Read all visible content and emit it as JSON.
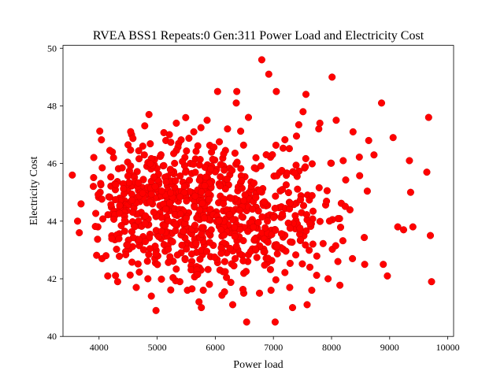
{
  "chart_data": {
    "type": "scatter",
    "title": "RVEA BSS1 Repeats:0 Gen:311 Power Load and Electricity Cost",
    "xlabel": "Power load",
    "ylabel": "Electricity Cost",
    "xlim": [
      3380,
      10100
    ],
    "ylim": [
      40,
      50.1
    ],
    "xticks": [
      4000,
      5000,
      6000,
      7000,
      8000,
      9000,
      10000
    ],
    "yticks": [
      40,
      42,
      44,
      46,
      48,
      50
    ],
    "grid": false,
    "marker_color": "#ff0000",
    "marker_edge_color": "#d40000",
    "sampled_points": [
      [
        3540,
        45.6
      ],
      [
        3630,
        44.0
      ],
      [
        3660,
        43.6
      ],
      [
        3690,
        44.6
      ],
      [
        3980,
        43.8
      ],
      [
        4020,
        45.0
      ],
      [
        4050,
        42.7
      ],
      [
        4120,
        42.8
      ],
      [
        4150,
        42.1
      ],
      [
        4230,
        46.4
      ],
      [
        4250,
        46.2
      ],
      [
        4320,
        41.9
      ],
      [
        4420,
        44.5
      ],
      [
        4560,
        47.0
      ],
      [
        4640,
        41.7
      ],
      [
        4700,
        45.2
      ],
      [
        4780,
        46.3
      ],
      [
        4860,
        47.7
      ],
      [
        4840,
        42.0
      ],
      [
        4900,
        41.4
      ],
      [
        4980,
        40.9
      ],
      [
        5070,
        43.4
      ],
      [
        5150,
        46.8
      ],
      [
        5210,
        47.0
      ],
      [
        5330,
        47.4
      ],
      [
        5390,
        41.9
      ],
      [
        5480,
        42.7
      ],
      [
        5520,
        41.6
      ],
      [
        5630,
        47.1
      ],
      [
        5720,
        41.2
      ],
      [
        5760,
        41.0
      ],
      [
        5860,
        47.5
      ],
      [
        6040,
        48.5
      ],
      [
        6080,
        42.3
      ],
      [
        6210,
        47.2
      ],
      [
        6300,
        41.1
      ],
      [
        6370,
        48.5
      ],
      [
        6360,
        48.1
      ],
      [
        6490,
        41.5
      ],
      [
        6540,
        40.5
      ],
      [
        6570,
        47.6
      ],
      [
        6700,
        46.2
      ],
      [
        6760,
        41.5
      ],
      [
        6800,
        49.6
      ],
      [
        6920,
        49.1
      ],
      [
        6960,
        41.6
      ],
      [
        7050,
        48.5
      ],
      [
        7030,
        40.5
      ],
      [
        7280,
        41.7
      ],
      [
        7330,
        41.0
      ],
      [
        7510,
        47.8
      ],
      [
        7560,
        48.4
      ],
      [
        7580,
        41.1
      ],
      [
        7660,
        41.6
      ],
      [
        7780,
        47.2
      ],
      [
        7800,
        47.4
      ],
      [
        7940,
        42.0
      ],
      [
        8010,
        49.0
      ],
      [
        8080,
        47.5
      ],
      [
        8110,
        42.6
      ],
      [
        8200,
        46.1
      ],
      [
        8360,
        42.7
      ],
      [
        8370,
        47.1
      ],
      [
        8570,
        42.5
      ],
      [
        8640,
        46.8
      ],
      [
        8730,
        46.3
      ],
      [
        8860,
        48.1
      ],
      [
        8890,
        42.5
      ],
      [
        8960,
        42.1
      ],
      [
        9060,
        46.9
      ],
      [
        9140,
        43.8
      ],
      [
        9240,
        43.7
      ],
      [
        9340,
        46.1
      ],
      [
        9360,
        45.0
      ],
      [
        9400,
        43.8
      ],
      [
        9640,
        45.7
      ],
      [
        9670,
        47.6
      ],
      [
        9700,
        43.5
      ],
      [
        9720,
        41.9
      ]
    ]
  }
}
